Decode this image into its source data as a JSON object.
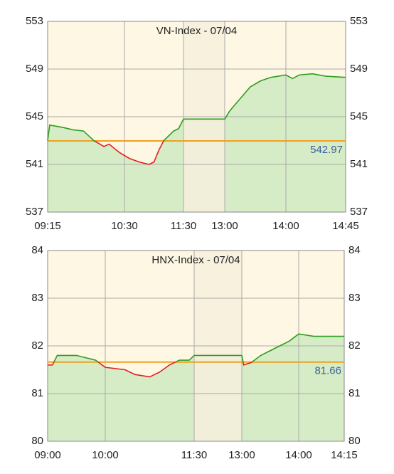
{
  "chart_data": [
    {
      "type": "line",
      "title": "VN-Index - 07/04",
      "x": [
        "09:15",
        "09:17",
        "09:30",
        "09:40",
        "09:50",
        "10:00",
        "10:10",
        "10:15",
        "10:25",
        "10:35",
        "10:45",
        "10:55",
        "11:00",
        "11:05",
        "11:10",
        "11:20",
        "11:25",
        "11:30",
        "13:00",
        "13:05",
        "13:15",
        "13:25",
        "13:35",
        "13:45",
        "14:00",
        "14:05",
        "14:10",
        "14:20",
        "14:30",
        "14:45"
      ],
      "series": [
        {
          "name": "VN-Index",
          "color": "#2e9e1e",
          "values": [
            543.0,
            544.3,
            544.1,
            543.9,
            543.8,
            543.0,
            542.5,
            542.7,
            542.0,
            541.5,
            541.2,
            541.0,
            541.2,
            542.2,
            543.0,
            543.8,
            544.0,
            544.8,
            544.8,
            545.5,
            546.5,
            547.5,
            548.0,
            548.3,
            548.5,
            548.2,
            548.5,
            548.6,
            548.4,
            548.3
          ]
        }
      ],
      "below_color": "#e02020",
      "fill_color": "#d6ecc6",
      "background": "#fdf7e3",
      "shaded_color": "#f6f0dd",
      "reference": 542.97,
      "reference_color": "#f0a020",
      "shaded_range": [
        "11:30",
        "13:00"
      ],
      "xlim": [
        "09:15",
        "14:45"
      ],
      "xticks": [
        "09:15",
        "10:30",
        "11:30",
        "13:00",
        "14:00",
        "14:45"
      ],
      "ylim": [
        537,
        553
      ],
      "yticks": [
        537,
        541,
        545,
        549,
        553
      ],
      "grid": true
    },
    {
      "type": "line",
      "title": "HNX-Index - 07/04",
      "x": [
        "09:00",
        "09:05",
        "09:10",
        "09:30",
        "09:50",
        "10:00",
        "10:20",
        "10:30",
        "10:45",
        "10:55",
        "11:05",
        "11:15",
        "11:25",
        "11:30",
        "13:00",
        "13:02",
        "13:10",
        "13:20",
        "13:40",
        "13:50",
        "14:00",
        "14:05",
        "14:15"
      ],
      "series": [
        {
          "name": "HNX-Index",
          "color": "#2e9e1e",
          "values": [
            81.6,
            81.6,
            81.8,
            81.8,
            81.7,
            81.55,
            81.5,
            81.4,
            81.35,
            81.45,
            81.6,
            81.7,
            81.7,
            81.8,
            81.8,
            81.6,
            81.65,
            81.8,
            82.0,
            82.1,
            82.25,
            82.2,
            82.2
          ]
        }
      ],
      "below_color": "#e02020",
      "fill_color": "#d6ecc6",
      "background": "#fdf7e3",
      "shaded_color": "#f6f0dd",
      "reference": 81.66,
      "reference_color": "#f0a020",
      "shaded_range": [
        "11:30",
        "13:00"
      ],
      "xlim": [
        "09:00",
        "14:15"
      ],
      "xticks": [
        "09:00",
        "10:00",
        "11:30",
        "13:00",
        "14:00",
        "14:15"
      ],
      "ylim": [
        80,
        84
      ],
      "yticks": [
        80,
        81,
        82,
        83,
        84
      ],
      "grid": true
    }
  ]
}
